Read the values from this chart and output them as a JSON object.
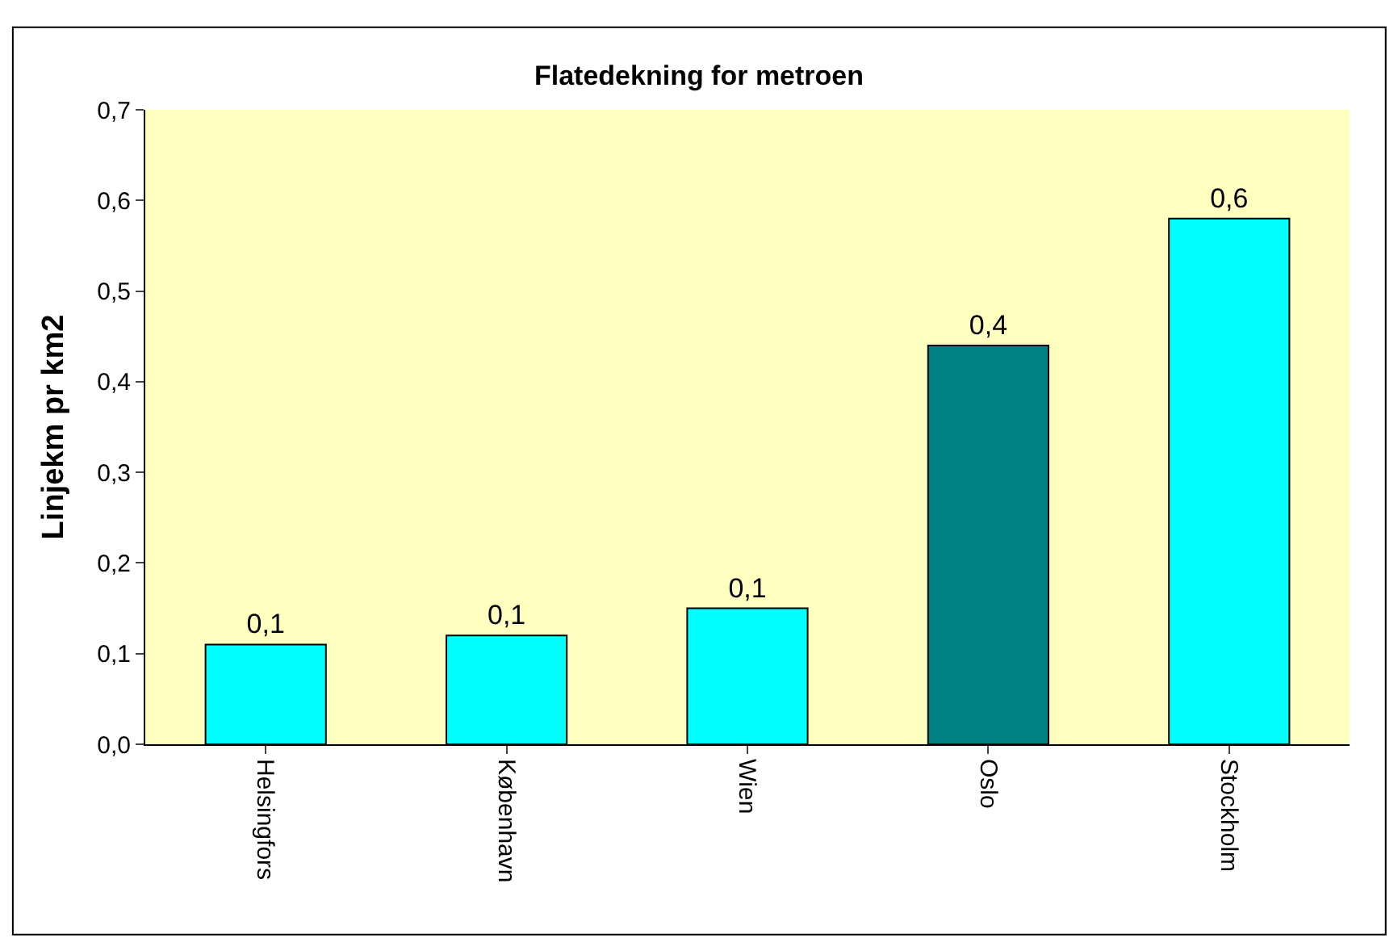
{
  "chart_data": {
    "type": "bar",
    "title": "Flatedekning for metroen",
    "ylabel": "Linjekm pr km2",
    "categories": [
      "Helsingfors",
      "København",
      "Wien",
      "Oslo",
      "Stockholm"
    ],
    "values": [
      0.11,
      0.12,
      0.15,
      0.44,
      0.58
    ],
    "colors": [
      "#00ffff",
      "#00ffff",
      "#00ffff",
      "#008080",
      "#00ffff"
    ],
    "value_labels": [
      "0,1",
      "0,1",
      "0,1",
      "0,4",
      "0,6"
    ],
    "ylim": [
      0,
      0.7
    ],
    "yticks": [
      {
        "value": 0,
        "label": "0,0"
      },
      {
        "value": 0.1,
        "label": "0,1"
      },
      {
        "value": 0.2,
        "label": "0,2"
      },
      {
        "value": 0.3,
        "label": "0,3"
      },
      {
        "value": 0.4,
        "label": "0,4"
      },
      {
        "value": 0.5,
        "label": "0,5"
      },
      {
        "value": 0.6,
        "label": "0,6"
      },
      {
        "value": 0.7,
        "label": "0,7"
      }
    ],
    "grid": false
  }
}
